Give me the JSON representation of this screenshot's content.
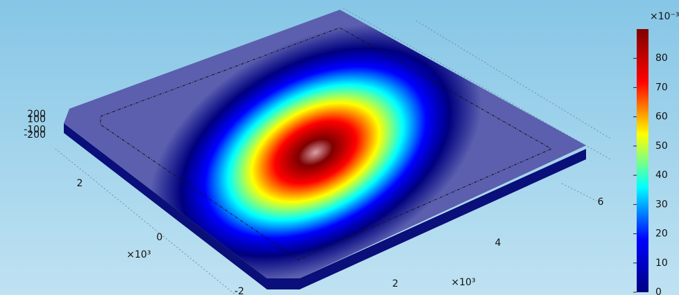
{
  "chart_data": {
    "type": "surface3d",
    "colormap": [
      "#00007f",
      "#0000ff",
      "#00ffff",
      "#ffff00",
      "#ff0000",
      "#7f0000"
    ],
    "plate_color": "#5b5fae",
    "side_color": "#0a0f7a",
    "x_axis": {
      "ticks": [
        2,
        4,
        6
      ],
      "multiplier": "×10³"
    },
    "y_axis": {
      "ticks": [
        -2,
        0,
        2
      ],
      "multiplier": "×10³"
    },
    "z_axis": {
      "ticks": [
        200,
        100,
        -100,
        -200
      ]
    },
    "colorbar": {
      "label": "×10⁻³",
      "lim": [
        0,
        90
      ],
      "ticks": [
        0,
        10,
        20,
        30,
        40,
        50,
        60,
        70,
        80
      ]
    }
  }
}
